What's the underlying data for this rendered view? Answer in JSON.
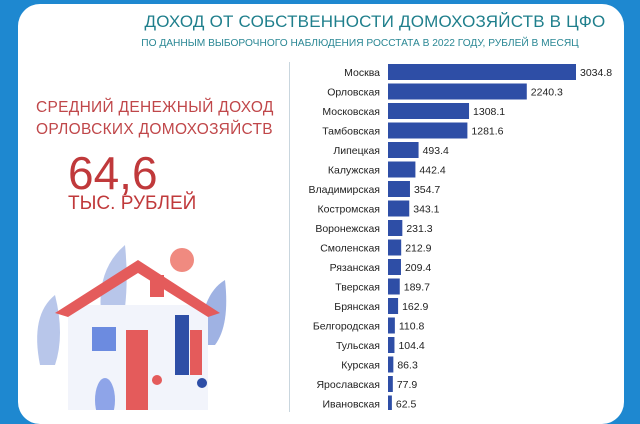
{
  "header": {
    "title": "ДОХОД ОТ СОБСТВЕННОСТИ ДОМОХОЗЯЙСТВ В ЦФО",
    "subtitle": "ПО ДАННЫМ ВЫБОРОЧНОГО НАБЛЮДЕНИЯ РОССТАТА В 2022 ГОДУ, РУБЛЕЙ В МЕСЯЦ"
  },
  "highlight": {
    "lead_line1": "СРЕДНИЙ ДЕНЕЖНЫЙ ДОХОД",
    "lead_line2": "ОРЛОВСКИХ ДОМОХОЗЯЙСТВ",
    "value": "64,6",
    "unit": "ТЫС. РУБЛЕЙ"
  },
  "colors": {
    "bar": "#2e4ea6",
    "accent": "#c0393b",
    "title": "#1f7f8c",
    "frame": "#1e88d0"
  },
  "chart_data": {
    "type": "bar",
    "orientation": "horizontal",
    "categories": [
      "Москва",
      "Орловская",
      "Московская",
      "Тамбовская",
      "Липецкая",
      "Калужская",
      "Владимирская",
      "Костромская",
      "Воронежская",
      "Смоленская",
      "Рязанская",
      "Тверская",
      "Брянская",
      "Белгородская",
      "Тульская",
      "Курская",
      "Ярославская",
      "Ивановская"
    ],
    "values": [
      3034.8,
      2240.3,
      1308.1,
      1281.6,
      493.4,
      442.4,
      354.7,
      343.1,
      231.3,
      212.9,
      209.4,
      189.7,
      162.9,
      110.8,
      104.4,
      86.3,
      77.9,
      62.5
    ],
    "value_labels": [
      "3034.8",
      "2240.3",
      "1308.1",
      "1281.6",
      "493.4",
      "442.4",
      "354.7",
      "343.1",
      "231.3",
      "212.9",
      "209.4",
      "189.7",
      "162.9",
      "110.8",
      "104.4",
      "86.3",
      "77.9",
      "62.5"
    ],
    "grid": false
  }
}
